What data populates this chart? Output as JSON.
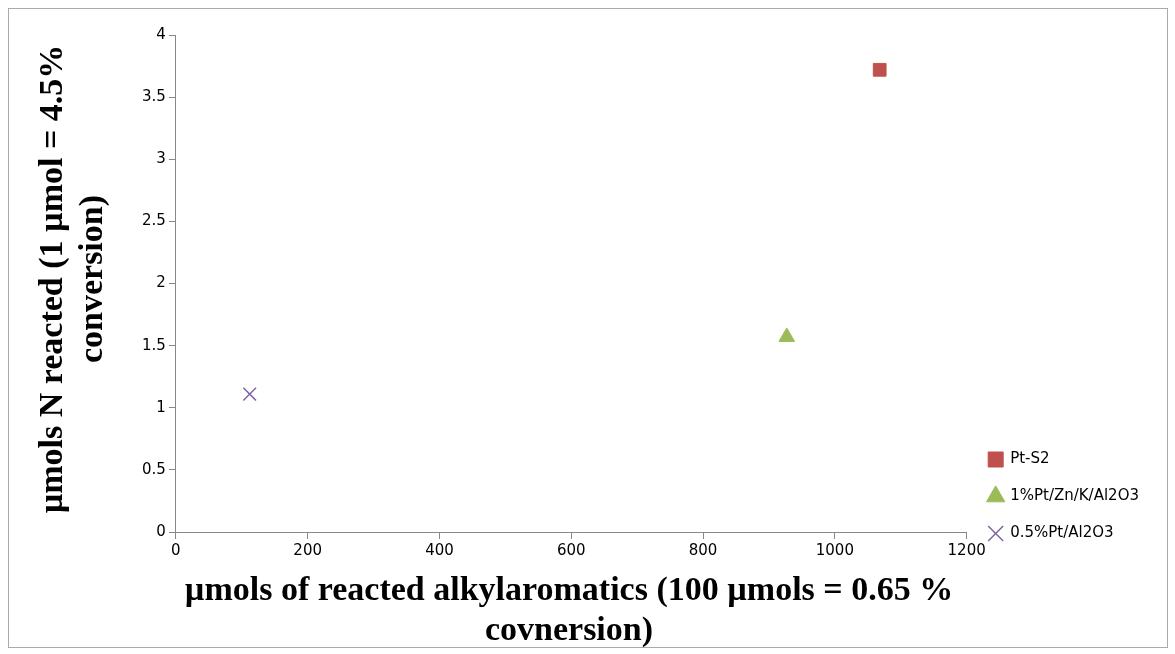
{
  "chart_data": {
    "type": "scatter",
    "xlabel": "µmols of reacted alkylaromatics (100 µmols = 0.65 % covnersion)",
    "ylabel": "µmols  N reacted  (1 µmol = 4.5% conversion)",
    "xlim": [
      0,
      1200
    ],
    "xticks": [
      0,
      200,
      400,
      600,
      800,
      1000,
      1200
    ],
    "ylim": [
      0,
      4
    ],
    "yticks": [
      0,
      0.5,
      1,
      1.5,
      2,
      2.5,
      3,
      3.5,
      4
    ],
    "grid": false,
    "legend": "right",
    "series": [
      {
        "name": "Pt-S2",
        "color": "#c0504d",
        "marker": "square",
        "x": [
          1068
        ],
        "values": [
          3.72
        ]
      },
      {
        "name": "1%Pt/Zn/K/Al2O3",
        "color": "#9bbb59",
        "marker": "triangle",
        "x": [
          927
        ],
        "values": [
          1.57
        ]
      },
      {
        "name": "0.5%Pt/Al2O3",
        "color": "#8064a2",
        "marker": "cross",
        "x": [
          112
        ],
        "values": [
          1.11
        ]
      }
    ]
  }
}
